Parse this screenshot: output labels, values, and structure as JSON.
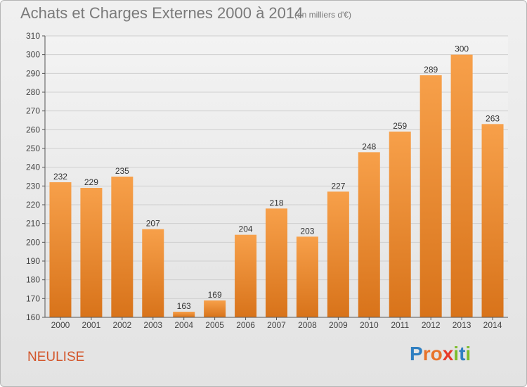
{
  "header": {
    "title": "Achats et Charges Externes 2000 à 2014",
    "subtitle": "(en milliers d'€)"
  },
  "footer": {
    "place": "NEULISE",
    "logo": "Proxiti"
  },
  "colors": {
    "bar_top": "#f7a04a",
    "bar_bottom": "#d8731a",
    "place": "#d3562b",
    "grid": "#cfcfcf"
  },
  "chart_data": {
    "type": "bar",
    "categories": [
      "2000",
      "2001",
      "2002",
      "2003",
      "2004",
      "2005",
      "2006",
      "2007",
      "2008",
      "2009",
      "2010",
      "2011",
      "2012",
      "2013",
      "2014"
    ],
    "values": [
      232,
      229,
      235,
      207,
      163,
      169,
      204,
      218,
      203,
      227,
      248,
      259,
      289,
      300,
      263
    ],
    "title": "Achats et Charges Externes 2000 à 2014",
    "ylabel": "",
    "xlabel": "",
    "ylim": [
      160,
      310
    ],
    "yticks": [
      160,
      170,
      180,
      190,
      200,
      210,
      220,
      230,
      240,
      250,
      260,
      270,
      280,
      290,
      300,
      310
    ],
    "grid": true
  }
}
